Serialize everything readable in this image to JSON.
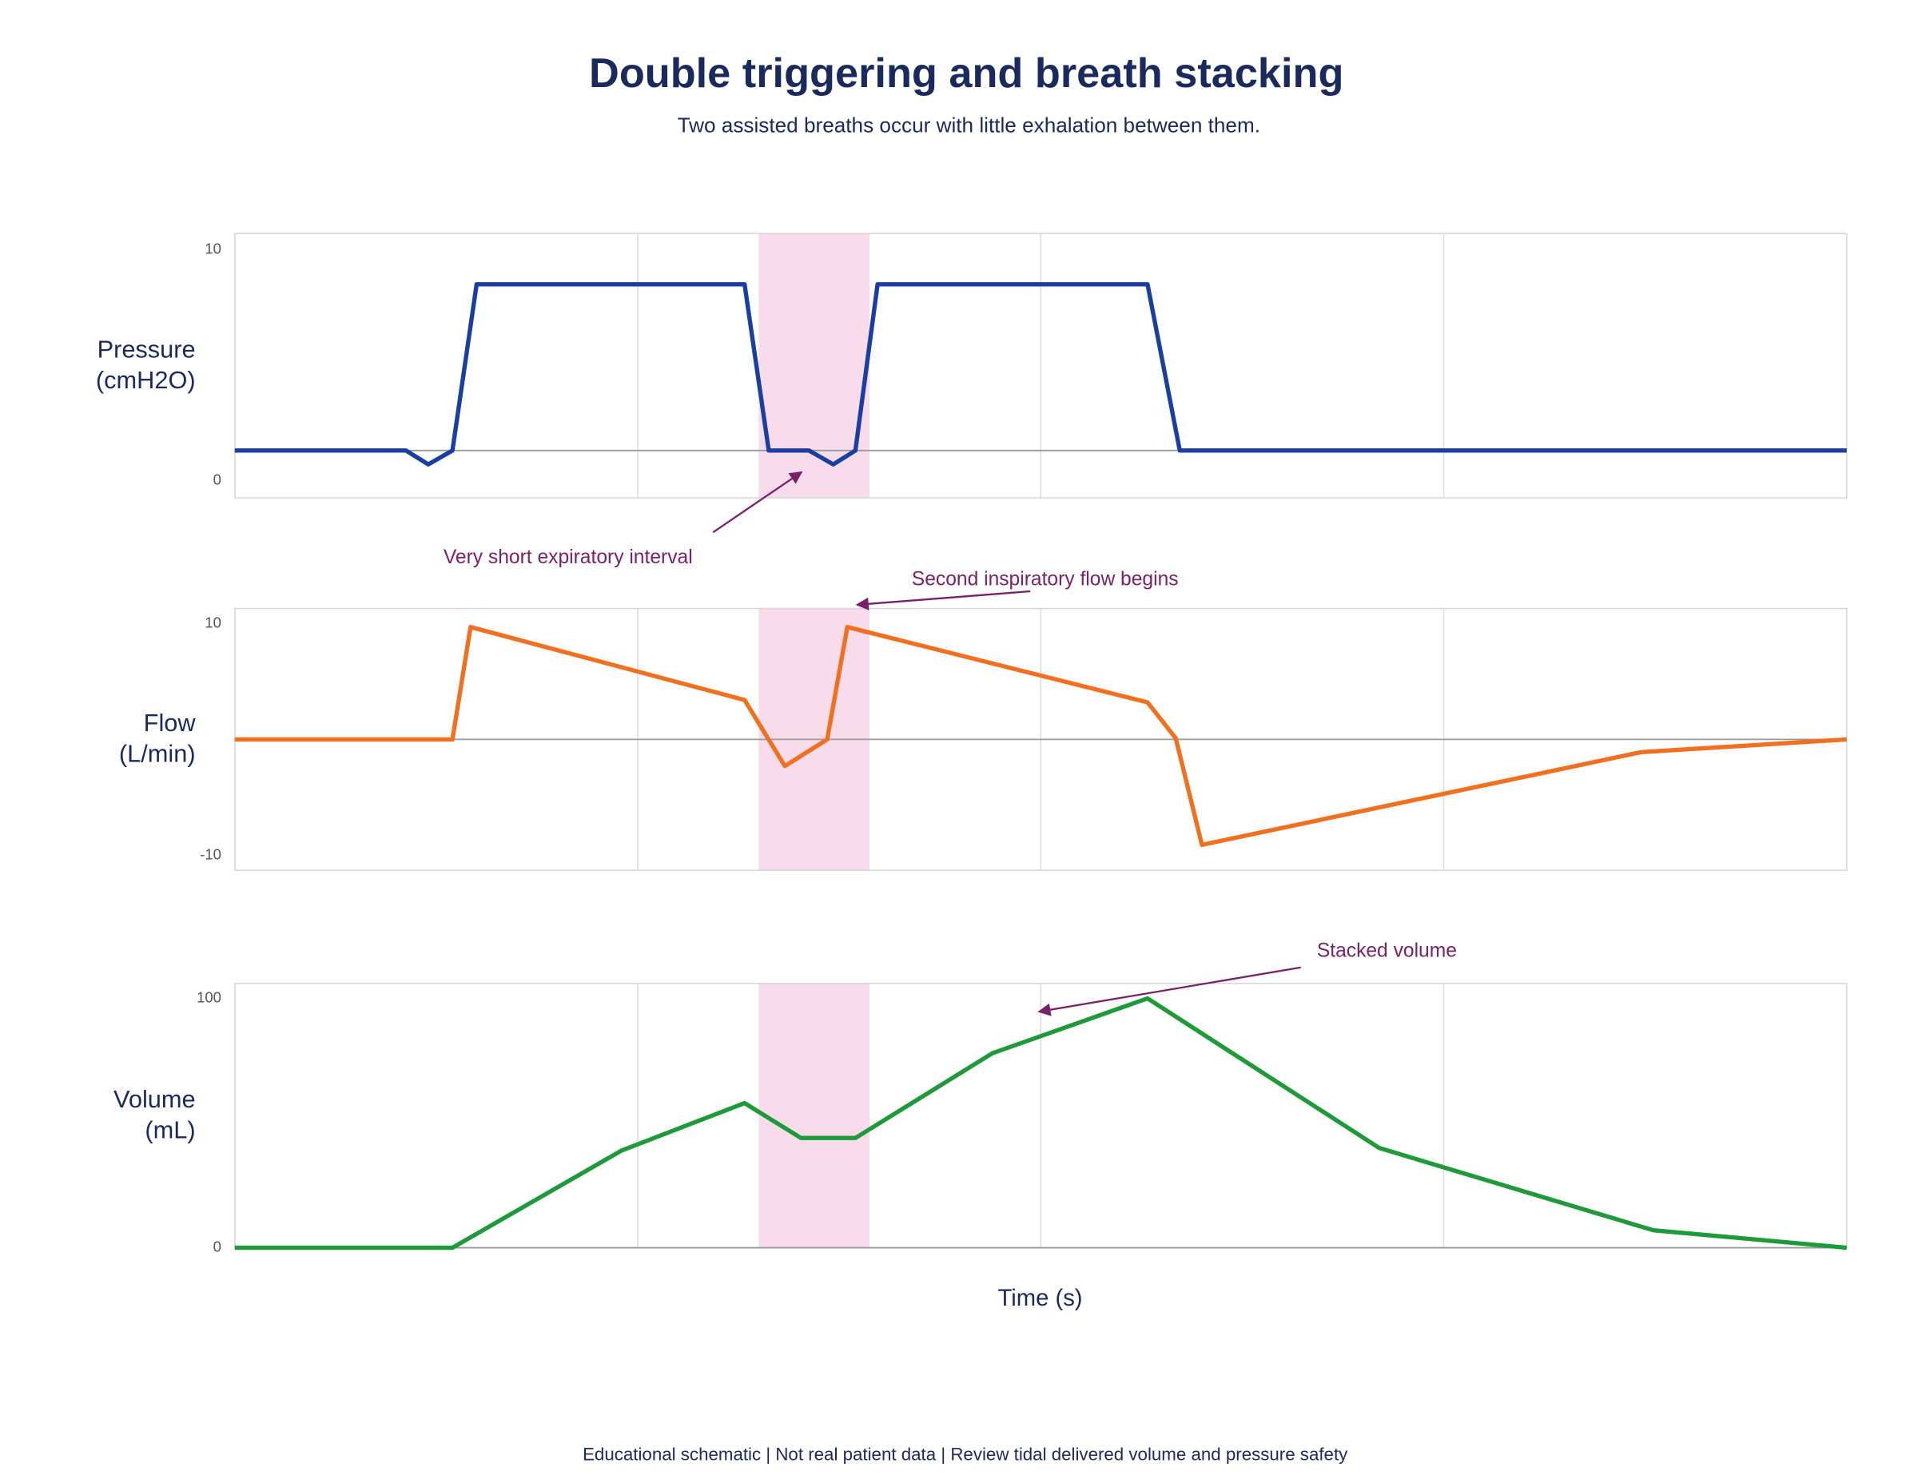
{
  "title": "Double triggering and breath stacking",
  "subtitle": "Two assisted breaths occur with little exhalation between them.",
  "xlabel": "Time (s)",
  "footer": "Educational schematic | Not real patient data | Review tidal delivered volume and pressure safety",
  "highlight": [
    2.6,
    3.15
  ],
  "annotations": [
    "Very short expiratory interval",
    "Second inspiratory flow begins",
    "Stacked volume"
  ],
  "chart_data": [
    {
      "type": "line",
      "ylabel": [
        "Pressure",
        "(cmH2O)"
      ],
      "color": "#1a3fa0",
      "xlim": [
        0,
        8
      ],
      "xticks": [
        2,
        4,
        6
      ],
      "ylim": [
        -0.75,
        10.7
      ],
      "yticks": [
        0,
        10
      ],
      "baseline": 1.3,
      "x": [
        0,
        0.85,
        0.96,
        1.08,
        1.2,
        2.53,
        2.65,
        2.85,
        2.97,
        3.08,
        3.19,
        4.53,
        4.69,
        8
      ],
      "values": [
        1.3,
        1.3,
        0.7,
        1.3,
        8.5,
        8.5,
        1.3,
        1.3,
        0.7,
        1.3,
        8.5,
        8.5,
        1.3,
        1.3
      ]
    },
    {
      "type": "line",
      "ylabel": [
        "Flow",
        "(L/min)"
      ],
      "color": "#f07020",
      "xlim": [
        0,
        8
      ],
      "xticks": [
        2,
        4,
        6
      ],
      "ylim": [
        -11.3,
        11.3
      ],
      "yticks": [
        -10,
        10
      ],
      "baseline": 0,
      "x": [
        0,
        1.08,
        1.17,
        2.53,
        2.73,
        2.94,
        3.04,
        4.53,
        4.67,
        4.8,
        6.98,
        8
      ],
      "values": [
        0,
        0,
        9.7,
        3.4,
        -2.3,
        0,
        9.7,
        3.2,
        0.1,
        -9.1,
        -1.1,
        0
      ]
    },
    {
      "type": "line",
      "ylabel": [
        "Volume",
        "(mL)"
      ],
      "color": "#1f9a3a",
      "xlim": [
        0,
        8
      ],
      "xticks": [
        2,
        4,
        6
      ],
      "ylim": [
        0,
        106
      ],
      "yticks": [
        0,
        100
      ],
      "baseline": 0,
      "x": [
        0,
        1.08,
        1.92,
        2.53,
        2.81,
        3.08,
        3.76,
        4.53,
        5.68,
        7.04,
        8
      ],
      "values": [
        0,
        0,
        39,
        58,
        44,
        44,
        78,
        100,
        40,
        7,
        0
      ]
    }
  ]
}
